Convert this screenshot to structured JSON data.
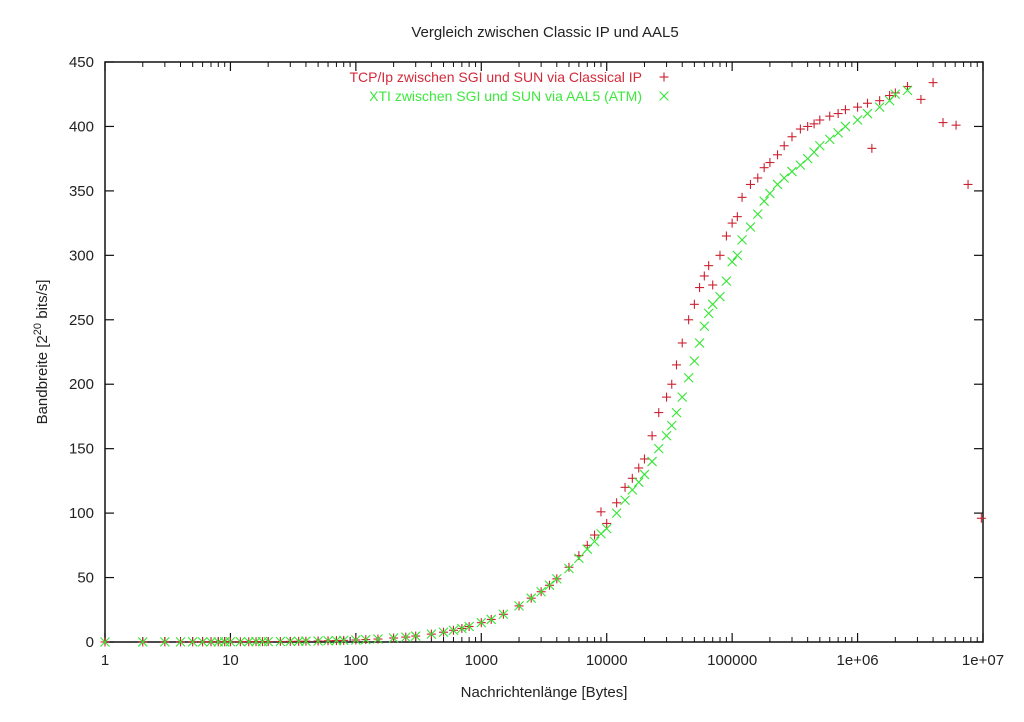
{
  "chart_data": {
    "type": "scatter",
    "title": "Vergleich zwischen Classic IP und AAL5",
    "xlabel": "Nachrichtenlänge [Bytes]",
    "ylabel_main": "Bandbreite [2",
    "ylabel_sup": "20",
    "ylabel_tail": " bits/s]",
    "xscale": "log",
    "xlim": [
      1,
      10000000
    ],
    "ylim": [
      0,
      450
    ],
    "legend_position": "top-center",
    "x_ticks": [
      {
        "value": 1,
        "label": "1"
      },
      {
        "value": 10,
        "label": "10"
      },
      {
        "value": 100,
        "label": "100"
      },
      {
        "value": 1000,
        "label": "1000"
      },
      {
        "value": 10000,
        "label": "10000"
      },
      {
        "value": 100000,
        "label": "100000"
      },
      {
        "value": 1000000,
        "label": "1e+06"
      },
      {
        "value": 10000000,
        "label": "1e+07"
      }
    ],
    "y_ticks": [
      {
        "value": 0,
        "label": "0"
      },
      {
        "value": 50,
        "label": "50"
      },
      {
        "value": 100,
        "label": "100"
      },
      {
        "value": 150,
        "label": "150"
      },
      {
        "value": 200,
        "label": "200"
      },
      {
        "value": 250,
        "label": "250"
      },
      {
        "value": 300,
        "label": "300"
      },
      {
        "value": 350,
        "label": "350"
      },
      {
        "value": 400,
        "label": "400"
      },
      {
        "value": 450,
        "label": "450"
      }
    ],
    "series": [
      {
        "name": "TCP/Ip zwischen SGI und SUN via Classical IP",
        "marker": "plus",
        "color": "#cc2030",
        "x": [
          1,
          2,
          3,
          4,
          5,
          6,
          7,
          8,
          9,
          10,
          12,
          14,
          16,
          18,
          20,
          25,
          30,
          35,
          40,
          50,
          60,
          70,
          80,
          100,
          120,
          150,
          200,
          250,
          300,
          400,
          500,
          600,
          700,
          800,
          1000,
          1200,
          1500,
          2000,
          2500,
          3000,
          3500,
          4000,
          5000,
          6000,
          7000,
          8000,
          9000,
          10000,
          12000,
          14000,
          16000,
          18000,
          20000,
          23000,
          26000,
          30000,
          33000,
          36000,
          40000,
          45000,
          50000,
          55000,
          60000,
          65000,
          70000,
          80000,
          90000,
          100000,
          110000,
          120000,
          140000,
          160000,
          180000,
          200000,
          230000,
          260000,
          300000,
          350000,
          400000,
          450000,
          500000,
          600000,
          700000,
          800000,
          1000000,
          1200000,
          1300000,
          1500000,
          1800000,
          2000000,
          2500000,
          3200000,
          4000000,
          4800000,
          6100000,
          7600000,
          9700000
        ],
        "y": [
          0.02,
          0.04,
          0.06,
          0.08,
          0.1,
          0.1,
          0.12,
          0.13,
          0.15,
          0.17,
          0.2,
          0.22,
          0.26,
          0.3,
          0.32,
          0.4,
          0.48,
          0.55,
          0.62,
          0.78,
          0.95,
          1.1,
          1.25,
          1.55,
          1.85,
          2.3,
          3.1,
          3.8,
          4.6,
          6.1,
          7.6,
          9.1,
          10.5,
          12,
          15,
          17.5,
          21.5,
          28,
          34,
          39,
          44,
          49,
          58,
          67,
          75,
          83,
          101,
          92,
          108,
          120,
          127,
          135,
          142,
          160,
          178,
          190,
          200,
          215,
          232,
          250,
          262,
          275,
          284,
          292,
          277,
          300,
          315,
          325,
          330,
          345,
          355,
          360,
          368,
          372,
          378,
          385,
          392,
          398,
          400,
          402,
          405,
          408,
          410,
          413,
          415,
          418,
          383,
          420,
          424,
          426,
          431,
          421,
          434,
          403,
          401,
          355,
          96
        ]
      },
      {
        "name": "XTI zwischen SGI und SUN via AAL5 (ATM)",
        "marker": "cross",
        "color": "#33e633",
        "x": [
          1,
          2,
          3,
          4,
          5,
          6,
          7,
          8,
          9,
          10,
          12,
          14,
          16,
          18,
          20,
          25,
          30,
          35,
          40,
          50,
          60,
          70,
          80,
          100,
          120,
          150,
          200,
          250,
          300,
          400,
          500,
          600,
          700,
          800,
          1000,
          1200,
          1500,
          2000,
          2500,
          3000,
          3500,
          4000,
          5000,
          6000,
          7000,
          8000,
          9000,
          10000,
          12000,
          14000,
          16000,
          18000,
          20000,
          23000,
          26000,
          30000,
          33000,
          36000,
          40000,
          45000,
          50000,
          55000,
          60000,
          65000,
          70000,
          80000,
          90000,
          100000,
          110000,
          120000,
          140000,
          160000,
          180000,
          200000,
          230000,
          260000,
          300000,
          350000,
          400000,
          450000,
          500000,
          600000,
          700000,
          800000,
          1000000,
          1200000,
          1500000,
          1800000,
          2000000,
          2500000
        ],
        "y": [
          0.02,
          0.04,
          0.06,
          0.08,
          0.1,
          0.1,
          0.12,
          0.13,
          0.15,
          0.17,
          0.2,
          0.22,
          0.26,
          0.3,
          0.32,
          0.4,
          0.48,
          0.55,
          0.62,
          0.78,
          0.95,
          1.1,
          1.25,
          1.55,
          1.85,
          2.3,
          3.1,
          3.8,
          4.6,
          6.1,
          7.6,
          9.1,
          10.5,
          12,
          15,
          17.5,
          21.5,
          28,
          34,
          39,
          44,
          49,
          57,
          65,
          72,
          78,
          84,
          88,
          100,
          110,
          118,
          124,
          130,
          140,
          150,
          160,
          168,
          178,
          190,
          205,
          218,
          232,
          245,
          255,
          262,
          268,
          280,
          295,
          300,
          312,
          322,
          332,
          342,
          348,
          355,
          360,
          365,
          370,
          375,
          380,
          385,
          390,
          395,
          400,
          405,
          410,
          415,
          420,
          425,
          428
        ]
      }
    ]
  }
}
